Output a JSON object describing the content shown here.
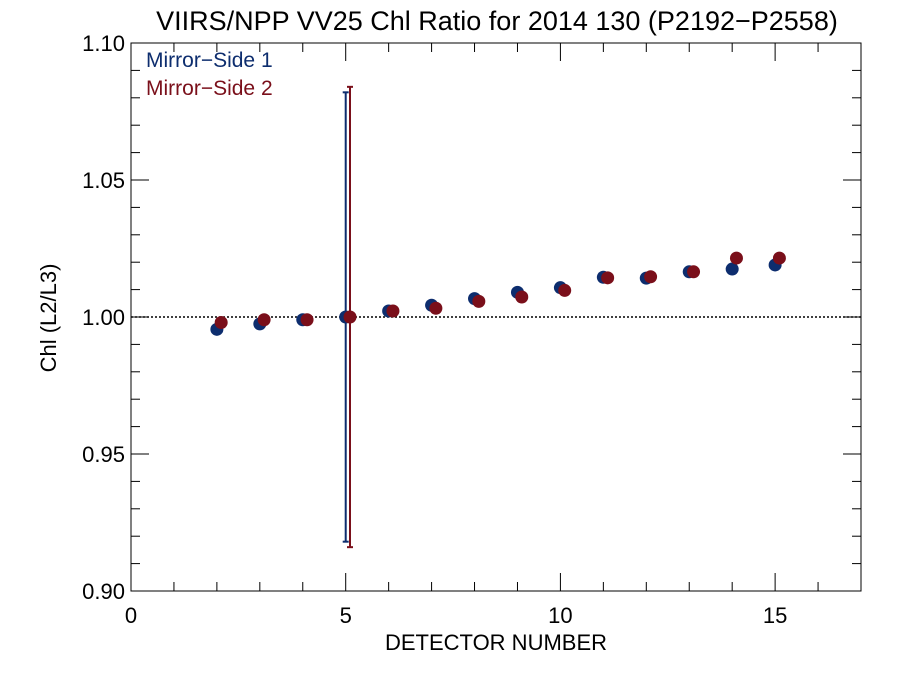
{
  "chart_data": {
    "type": "scatter",
    "title": "VIIRS/NPP VV25 Chl Ratio for 2014 130 (P2192−P2558)",
    "xlabel": "DETECTOR NUMBER",
    "ylabel": "Chl (L2/L3)",
    "xlim": [
      0,
      17
    ],
    "ylim": [
      0.9,
      1.1
    ],
    "x_ticks": [
      0,
      5,
      10,
      15
    ],
    "x_tick_labels": [
      "0",
      "5",
      "10",
      "15"
    ],
    "y_ticks": [
      0.9,
      0.95,
      1.0,
      1.05,
      1.1
    ],
    "y_tick_labels": [
      "0.90",
      "0.95",
      "1.00",
      "1.05",
      "1.10"
    ],
    "reference_line_y": 1.0,
    "legend_position": "top-left",
    "series": [
      {
        "name": "Mirror−Side 1",
        "color": "#0d2d6e",
        "x": [
          2,
          3,
          4,
          5,
          6,
          7,
          8,
          9,
          10,
          11,
          12,
          13,
          14,
          15
        ],
        "y": [
          0.9955,
          0.9975,
          0.999,
          1.0,
          1.0022,
          1.0043,
          1.0067,
          1.009,
          1.0107,
          1.0145,
          1.0142,
          1.0165,
          1.0175,
          1.019
        ],
        "errorbars": [
          {
            "x": 5,
            "low": 0.918,
            "high": 1.082
          }
        ]
      },
      {
        "name": "Mirror−Side 2",
        "color": "#7a0f1a",
        "x": [
          2.1,
          3.1,
          4.1,
          5.1,
          6.1,
          7.1,
          8.1,
          9.1,
          10.1,
          11.1,
          12.1,
          13.1,
          14.1,
          15.1
        ],
        "y": [
          0.998,
          0.999,
          0.999,
          1.0,
          1.0022,
          1.0032,
          1.0057,
          1.0073,
          1.0097,
          1.0143,
          1.0147,
          1.0165,
          1.0215,
          1.0215
        ],
        "errorbars": [
          {
            "x": 5.1,
            "low": 0.916,
            "high": 1.084
          }
        ]
      }
    ]
  }
}
